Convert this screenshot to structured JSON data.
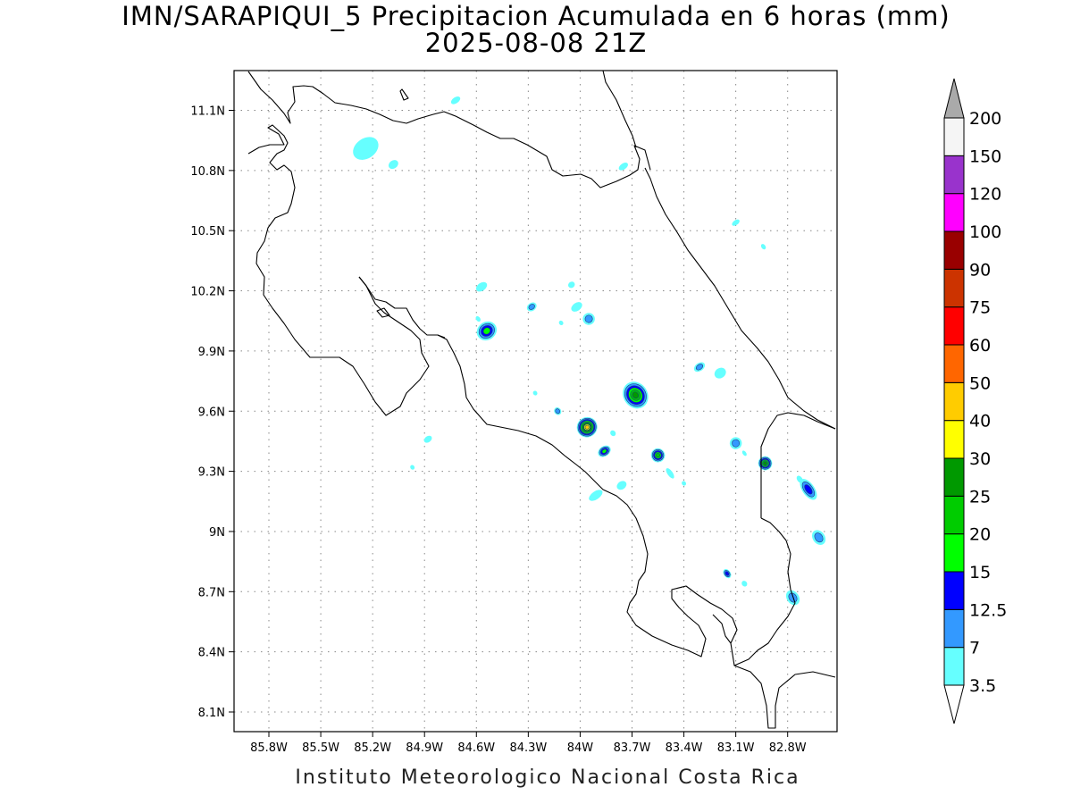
{
  "title": {
    "line1": "IMN/SARAPIQUI_5 Precipitacion Acumulada en 6 horas (mm)",
    "line2": "2025-08-08 21Z"
  },
  "footer": "Instituto Meteorologico Nacional Costa Rica",
  "lon_ticks": [
    {
      "value": -85.8,
      "label": "85.8W"
    },
    {
      "value": -85.5,
      "label": "85.5W"
    },
    {
      "value": -85.2,
      "label": "85.2W"
    },
    {
      "value": -84.9,
      "label": "84.9W"
    },
    {
      "value": -84.6,
      "label": "84.6W"
    },
    {
      "value": -84.3,
      "label": "84.3W"
    },
    {
      "value": -84.0,
      "label": "84W"
    },
    {
      "value": -83.7,
      "label": "83.7W"
    },
    {
      "value": -83.4,
      "label": "83.4W"
    },
    {
      "value": -83.1,
      "label": "83.1W"
    },
    {
      "value": -82.8,
      "label": "82.8W"
    }
  ],
  "lat_ticks": [
    {
      "value": 11.1,
      "label": "11.1N"
    },
    {
      "value": 10.8,
      "label": "10.8N"
    },
    {
      "value": 10.5,
      "label": "10.5N"
    },
    {
      "value": 10.2,
      "label": "10.2N"
    },
    {
      "value": 9.9,
      "label": "9.9N"
    },
    {
      "value": 9.6,
      "label": "9.6N"
    },
    {
      "value": 9.3,
      "label": "9.3N"
    },
    {
      "value": 9.0,
      "label": "9N"
    },
    {
      "value": 8.7,
      "label": "8.7N"
    },
    {
      "value": 8.4,
      "label": "8.4N"
    },
    {
      "value": 8.1,
      "label": "8.1N"
    }
  ],
  "lon_range": [
    -86.0,
    -82.5
  ],
  "lat_range": [
    8.0,
    11.3
  ],
  "colorbar": {
    "levels": [
      "3.5",
      "7",
      "12.5",
      "15",
      "20",
      "25",
      "30",
      "40",
      "50",
      "60",
      "75",
      "90",
      "100",
      "120",
      "150",
      "200"
    ],
    "colors": [
      "#66ffff",
      "#3399ff",
      "#0000ff",
      "#00ff00",
      "#00cc00",
      "#009900",
      "#ffff00",
      "#ffcc00",
      "#ff6600",
      "#ff0000",
      "#cc3300",
      "#990000",
      "#ff00ff",
      "#9933cc",
      "#f5f5f5"
    ],
    "under_color": "#ffffff",
    "over_color": "#aaaaaa"
  },
  "precip_cells": [
    {
      "lon": -85.24,
      "lat": 10.91,
      "rx": 0.08,
      "ry": 0.05,
      "max_level": 0
    },
    {
      "lon": -85.08,
      "lat": 10.83,
      "rx": 0.03,
      "ry": 0.02,
      "max_level": 0
    },
    {
      "lon": -84.72,
      "lat": 11.15,
      "rx": 0.03,
      "ry": 0.015,
      "max_level": 0
    },
    {
      "lon": -84.05,
      "lat": 10.23,
      "rx": 0.02,
      "ry": 0.015,
      "max_level": 0
    },
    {
      "lon": -84.57,
      "lat": 10.22,
      "rx": 0.035,
      "ry": 0.02,
      "max_level": 0
    },
    {
      "lon": -84.28,
      "lat": 10.12,
      "rx": 0.03,
      "ry": 0.02,
      "max_level": 1
    },
    {
      "lon": -84.02,
      "lat": 10.12,
      "rx": 0.035,
      "ry": 0.02,
      "max_level": 0
    },
    {
      "lon": -83.95,
      "lat": 10.06,
      "rx": 0.035,
      "ry": 0.03,
      "max_level": 1
    },
    {
      "lon": -84.54,
      "lat": 10.0,
      "rx": 0.06,
      "ry": 0.045,
      "max_level": 3
    },
    {
      "lon": -83.68,
      "lat": 9.68,
      "rx": 0.07,
      "ry": 0.07,
      "max_level": 5
    },
    {
      "lon": -83.96,
      "lat": 9.52,
      "rx": 0.06,
      "ry": 0.05,
      "max_level": 7
    },
    {
      "lon": -84.13,
      "lat": 9.6,
      "rx": 0.02,
      "ry": 0.02,
      "max_level": 1
    },
    {
      "lon": -83.86,
      "lat": 9.4,
      "rx": 0.04,
      "ry": 0.025,
      "max_level": 3
    },
    {
      "lon": -83.55,
      "lat": 9.38,
      "rx": 0.04,
      "ry": 0.035,
      "max_level": 4
    },
    {
      "lon": -83.48,
      "lat": 9.29,
      "rx": 0.015,
      "ry": 0.03,
      "max_level": 0
    },
    {
      "lon": -83.31,
      "lat": 9.82,
      "rx": 0.035,
      "ry": 0.02,
      "max_level": 1
    },
    {
      "lon": -83.19,
      "lat": 9.79,
      "rx": 0.035,
      "ry": 0.025,
      "max_level": 0
    },
    {
      "lon": -83.1,
      "lat": 9.44,
      "rx": 0.035,
      "ry": 0.03,
      "max_level": 1
    },
    {
      "lon": -82.93,
      "lat": 9.34,
      "rx": 0.04,
      "ry": 0.035,
      "max_level": 5
    },
    {
      "lon": -82.68,
      "lat": 9.21,
      "rx": 0.035,
      "ry": 0.06,
      "max_level": 2
    },
    {
      "lon": -82.62,
      "lat": 8.97,
      "rx": 0.035,
      "ry": 0.04,
      "max_level": 1
    },
    {
      "lon": -82.77,
      "lat": 8.67,
      "rx": 0.035,
      "ry": 0.04,
      "max_level": 1
    },
    {
      "lon": -83.15,
      "lat": 8.79,
      "rx": 0.02,
      "ry": 0.025,
      "max_level": 2
    },
    {
      "lon": -83.05,
      "lat": 8.74,
      "rx": 0.015,
      "ry": 0.015,
      "max_level": 0
    },
    {
      "lon": -83.91,
      "lat": 9.18,
      "rx": 0.045,
      "ry": 0.02,
      "max_level": 0
    },
    {
      "lon": -83.76,
      "lat": 9.23,
      "rx": 0.03,
      "ry": 0.02,
      "max_level": 0
    },
    {
      "lon": -83.81,
      "lat": 9.49,
      "rx": 0.015,
      "ry": 0.015,
      "max_level": 0
    },
    {
      "lon": -84.88,
      "lat": 9.46,
      "rx": 0.025,
      "ry": 0.015,
      "max_level": 0
    },
    {
      "lon": -84.97,
      "lat": 9.32,
      "rx": 0.012,
      "ry": 0.012,
      "max_level": 0
    },
    {
      "lon": -84.26,
      "lat": 9.69,
      "rx": 0.012,
      "ry": 0.012,
      "max_level": 0
    },
    {
      "lon": -84.59,
      "lat": 10.06,
      "rx": 0.012,
      "ry": 0.015,
      "max_level": 0
    },
    {
      "lon": -84.11,
      "lat": 10.04,
      "rx": 0.012,
      "ry": 0.012,
      "max_level": 0
    },
    {
      "lon": -83.1,
      "lat": 10.54,
      "rx": 0.025,
      "ry": 0.012,
      "max_level": 0
    },
    {
      "lon": -82.94,
      "lat": 10.42,
      "rx": 0.012,
      "ry": 0.015,
      "max_level": 0
    },
    {
      "lon": -83.4,
      "lat": 9.24,
      "rx": 0.012,
      "ry": 0.012,
      "max_level": 0
    },
    {
      "lon": -83.75,
      "lat": 10.82,
      "rx": 0.03,
      "ry": 0.015,
      "max_level": 0
    },
    {
      "lon": -82.73,
      "lat": 9.26,
      "rx": 0.015,
      "ry": 0.02,
      "max_level": 0
    },
    {
      "lon": -83.05,
      "lat": 9.39,
      "rx": 0.01,
      "ry": 0.015,
      "max_level": 0
    }
  ]
}
